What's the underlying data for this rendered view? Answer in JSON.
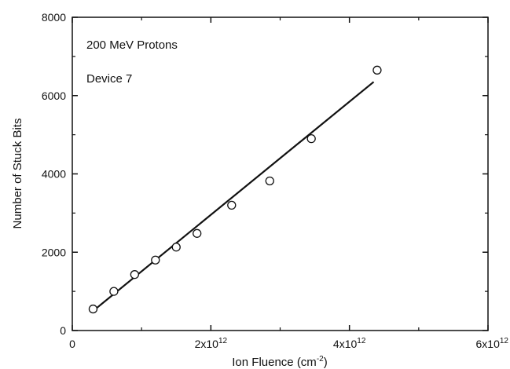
{
  "chart_data": {
    "type": "scatter",
    "title": "",
    "xlabel": {
      "base": "Ion Fluence (cm",
      "sup": "-2",
      "end": ")"
    },
    "ylabel": "Number of Stuck Bits",
    "xlim": [
      0,
      6000000000000
    ],
    "ylim": [
      0,
      8000
    ],
    "x_ticks": [
      {
        "value": 0,
        "base": "0",
        "sup": ""
      },
      {
        "value": 2000000000000,
        "base": "2x10",
        "sup": "12"
      },
      {
        "value": 4000000000000,
        "base": "4x10",
        "sup": "12"
      },
      {
        "value": 6000000000000,
        "base": "6x10",
        "sup": "12"
      }
    ],
    "y_ticks": [
      {
        "value": 0,
        "label": "0"
      },
      {
        "value": 2000,
        "label": "2000"
      },
      {
        "value": 4000,
        "label": "4000"
      },
      {
        "value": 6000,
        "label": "6000"
      },
      {
        "value": 8000,
        "label": "8000"
      }
    ],
    "annotations": [
      "200 MeV Protons",
      "Device 7"
    ],
    "grid": false,
    "series": [
      {
        "marker": "open-circle",
        "x": [
          300000000000,
          600000000000,
          900000000000,
          1200000000000,
          1500000000000,
          1800000000000,
          2300000000000,
          2850000000000,
          3450000000000,
          4400000000000
        ],
        "y": [
          550,
          1000,
          1430,
          1800,
          2130,
          2480,
          3200,
          3820,
          4900,
          6650
        ]
      }
    ],
    "fit_line": {
      "x": [
        300000000000,
        4350000000000
      ],
      "y": [
        500,
        6350
      ]
    },
    "colors": {
      "line": "#111111",
      "marker_stroke": "#111111",
      "marker_fill": "#ffffff"
    }
  }
}
